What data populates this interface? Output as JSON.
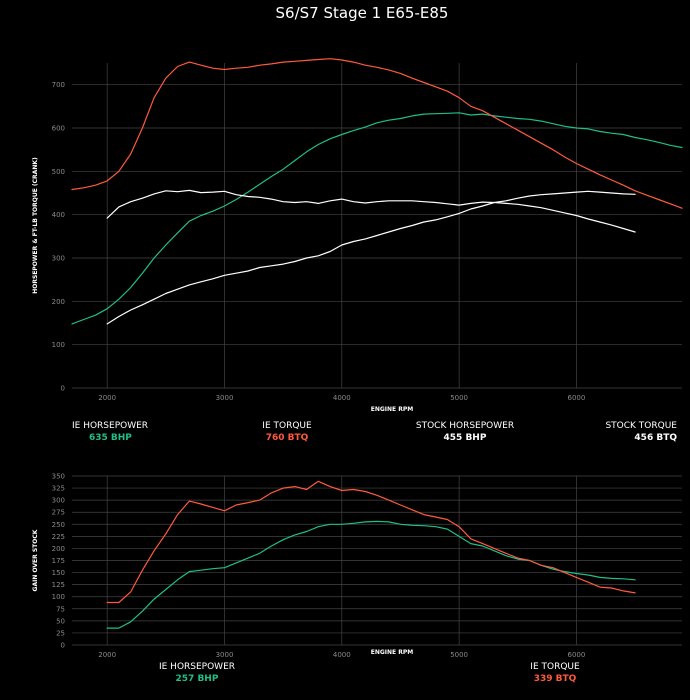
{
  "title": "S6/S7 Stage 1 E65-E85",
  "colors": {
    "ie_hp": "#1fbf8a",
    "ie_tq": "#ff5a3c",
    "stock": "#ffffff",
    "grid": "#444444",
    "tick": "#8a8a8a"
  },
  "chart_data": [
    {
      "type": "line",
      "xlabel": "ENGINE RPM",
      "ylabel": "HORSEPOWER & FT-LB TORQUE (CRANK)",
      "xlim": [
        1700,
        6900
      ],
      "ylim": [
        0,
        750
      ],
      "xticks": [
        2000,
        3000,
        4000,
        5000,
        6000
      ],
      "yticks": [
        0,
        100,
        200,
        300,
        400,
        500,
        600,
        700
      ],
      "series": [
        {
          "name": "IE HORSEPOWER",
          "value_label": "635 BHP",
          "color": "#1fbf8a",
          "legend_align": "start",
          "legend_x": 72,
          "x": [
            1700,
            1800,
            1900,
            2000,
            2100,
            2200,
            2300,
            2400,
            2500,
            2600,
            2700,
            2800,
            2900,
            3000,
            3100,
            3200,
            3300,
            3400,
            3500,
            3600,
            3700,
            3800,
            3900,
            4000,
            4100,
            4200,
            4300,
            4400,
            4500,
            4600,
            4700,
            4800,
            4900,
            5000,
            5100,
            5200,
            5300,
            5400,
            5500,
            5600,
            5700,
            5800,
            5900,
            6000,
            6100,
            6200,
            6300,
            6400,
            6500,
            6600,
            6700,
            6800,
            6900
          ],
          "y": [
            148,
            158,
            168,
            183,
            205,
            232,
            265,
            300,
            330,
            358,
            385,
            398,
            408,
            420,
            435,
            452,
            470,
            488,
            505,
            525,
            545,
            562,
            575,
            585,
            594,
            602,
            612,
            618,
            622,
            628,
            632,
            633,
            634,
            635,
            630,
            632,
            628,
            625,
            622,
            620,
            616,
            610,
            604,
            600,
            598,
            592,
            588,
            585,
            578,
            573,
            567,
            560,
            555
          ]
        },
        {
          "name": "IE TORQUE",
          "value_label": "760 BTQ",
          "color": "#ff5a3c",
          "legend_align": "middle",
          "legend_x": 287,
          "x": [
            1700,
            1800,
            1900,
            2000,
            2100,
            2200,
            2300,
            2400,
            2500,
            2600,
            2700,
            2800,
            2900,
            3000,
            3100,
            3200,
            3300,
            3400,
            3500,
            3600,
            3700,
            3800,
            3900,
            4000,
            4100,
            4200,
            4300,
            4400,
            4500,
            4600,
            4700,
            4800,
            4900,
            5000,
            5100,
            5200,
            5300,
            5400,
            5500,
            5600,
            5700,
            5800,
            5900,
            6000,
            6100,
            6200,
            6300,
            6400,
            6500,
            6600,
            6700,
            6800,
            6900
          ],
          "y": [
            458,
            462,
            468,
            478,
            500,
            540,
            600,
            670,
            715,
            742,
            752,
            745,
            738,
            735,
            738,
            740,
            745,
            748,
            752,
            754,
            756,
            758,
            760,
            757,
            752,
            745,
            740,
            734,
            726,
            715,
            705,
            695,
            685,
            670,
            650,
            640,
            625,
            610,
            595,
            580,
            565,
            550,
            533,
            518,
            505,
            492,
            480,
            468,
            455,
            445,
            435,
            425,
            415
          ]
        },
        {
          "name": "STOCK HORSEPOWER",
          "value_label": "455 BHP",
          "color": "#ffffff",
          "legend_align": "middle",
          "legend_x": 465,
          "x": [
            2000,
            2100,
            2200,
            2300,
            2400,
            2500,
            2600,
            2700,
            2800,
            2900,
            3000,
            3100,
            3200,
            3300,
            3400,
            3500,
            3600,
            3700,
            3800,
            3900,
            4000,
            4100,
            4200,
            4300,
            4400,
            4500,
            4600,
            4700,
            4800,
            4900,
            5000,
            5100,
            5200,
            5300,
            5400,
            5500,
            5600,
            5700,
            5800,
            5900,
            6000,
            6100,
            6200,
            6300,
            6400,
            6500
          ],
          "y": [
            148,
            165,
            180,
            192,
            205,
            218,
            228,
            238,
            245,
            252,
            260,
            265,
            270,
            278,
            282,
            286,
            292,
            300,
            305,
            315,
            330,
            338,
            344,
            352,
            360,
            368,
            375,
            383,
            388,
            395,
            403,
            413,
            420,
            428,
            432,
            438,
            443,
            446,
            448,
            450,
            452,
            454,
            452,
            450,
            448,
            447
          ]
        },
        {
          "name": "STOCK TORQUE",
          "value_label": "456 BTQ",
          "color": "#ffffff",
          "legend_align": "end",
          "legend_x": 677,
          "x": [
            2000,
            2100,
            2200,
            2300,
            2400,
            2500,
            2600,
            2700,
            2800,
            2900,
            3000,
            3100,
            3200,
            3300,
            3400,
            3500,
            3600,
            3700,
            3800,
            3900,
            4000,
            4100,
            4200,
            4300,
            4400,
            4500,
            4600,
            4700,
            4800,
            4900,
            5000,
            5100,
            5200,
            5300,
            5400,
            5500,
            5600,
            5700,
            5800,
            5900,
            6000,
            6100,
            6200,
            6300,
            6400,
            6500
          ],
          "y": [
            392,
            418,
            430,
            438,
            448,
            455,
            453,
            456,
            451,
            452,
            454,
            446,
            442,
            440,
            436,
            430,
            428,
            430,
            426,
            432,
            436,
            430,
            427,
            430,
            432,
            432,
            432,
            430,
            428,
            425,
            422,
            426,
            429,
            428,
            426,
            424,
            420,
            416,
            410,
            404,
            398,
            390,
            383,
            376,
            368,
            360
          ]
        }
      ]
    },
    {
      "type": "line",
      "xlabel": "ENGINE RPM",
      "ylabel": "GAIN OVER STOCK",
      "xlim": [
        1700,
        6900
      ],
      "ylim": [
        0,
        350
      ],
      "xticks": [
        2000,
        3000,
        4000,
        5000,
        6000
      ],
      "yticks": [
        0,
        25,
        50,
        75,
        100,
        125,
        150,
        175,
        200,
        225,
        250,
        275,
        300,
        325,
        350
      ],
      "series": [
        {
          "name": "IE HORSEPOWER",
          "value_label": "257 BHP",
          "color": "#1fbf8a",
          "legend_align": "middle",
          "legend_x": 197,
          "x": [
            2000,
            2100,
            2200,
            2300,
            2400,
            2500,
            2600,
            2700,
            2800,
            2900,
            3000,
            3100,
            3200,
            3300,
            3400,
            3500,
            3600,
            3700,
            3800,
            3900,
            4000,
            4100,
            4200,
            4300,
            4400,
            4500,
            4600,
            4700,
            4800,
            4900,
            5000,
            5100,
            5200,
            5300,
            5400,
            5500,
            5600,
            5700,
            5800,
            5900,
            6000,
            6100,
            6200,
            6300,
            6400,
            6500
          ],
          "y": [
            35,
            35,
            48,
            70,
            95,
            115,
            135,
            152,
            155,
            158,
            160,
            170,
            180,
            190,
            205,
            218,
            228,
            235,
            245,
            250,
            250,
            252,
            255,
            256,
            255,
            250,
            248,
            247,
            245,
            240,
            225,
            210,
            205,
            195,
            185,
            178,
            175,
            165,
            157,
            152,
            148,
            145,
            140,
            138,
            137,
            135
          ]
        },
        {
          "name": "IE TORQUE",
          "value_label": "339 BTQ",
          "color": "#ff5a3c",
          "legend_align": "middle",
          "legend_x": 555,
          "x": [
            2000,
            2100,
            2200,
            2300,
            2400,
            2500,
            2600,
            2700,
            2800,
            2900,
            3000,
            3100,
            3200,
            3300,
            3400,
            3500,
            3600,
            3700,
            3800,
            3900,
            4000,
            4100,
            4200,
            4300,
            4400,
            4500,
            4600,
            4700,
            4800,
            4900,
            5000,
            5100,
            5200,
            5300,
            5400,
            5500,
            5600,
            5700,
            5800,
            5900,
            6000,
            6100,
            6200,
            6300,
            6400,
            6500
          ],
          "y": [
            88,
            88,
            110,
            155,
            195,
            230,
            270,
            298,
            292,
            285,
            278,
            290,
            295,
            300,
            315,
            325,
            328,
            322,
            339,
            328,
            320,
            322,
            318,
            310,
            300,
            290,
            280,
            270,
            265,
            260,
            245,
            220,
            210,
            200,
            190,
            180,
            175,
            165,
            160,
            150,
            140,
            130,
            120,
            118,
            112,
            108
          ]
        }
      ]
    }
  ]
}
